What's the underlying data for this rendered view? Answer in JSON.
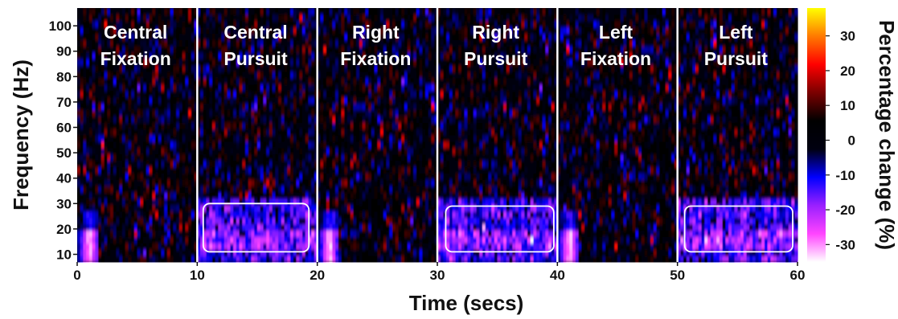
{
  "chart_data": {
    "type": "heatmap",
    "xlabel": "Time (secs)",
    "ylabel": "Frequency (Hz)",
    "xlim": [
      0,
      60
    ],
    "ylim": [
      7,
      107
    ],
    "x_ticks": [
      0,
      10,
      20,
      30,
      40,
      50,
      60
    ],
    "y_ticks": [
      10,
      20,
      30,
      40,
      50,
      60,
      70,
      80,
      90,
      100
    ],
    "colorbar": {
      "label": "Percentage change (%)",
      "range": [
        -35,
        38
      ],
      "ticks": [
        30,
        20,
        10,
        0,
        -10,
        -20,
        -30
      ],
      "colormap": [
        "#ffffff",
        "#ff44ff",
        "#9a20ff",
        "#0000ff",
        "#000010",
        "#000000",
        "#7a0000",
        "#ff0000",
        "#ff7a00",
        "#ffff00"
      ]
    },
    "segments": [
      {
        "label_line1": "Central",
        "label_line2": "Fixation",
        "x_start": 0,
        "x_end": 10,
        "condition": "fixation"
      },
      {
        "label_line1": "Central",
        "label_line2": "Pursuit",
        "x_start": 10,
        "x_end": 20,
        "condition": "pursuit"
      },
      {
        "label_line1": "Right",
        "label_line2": "Fixation",
        "x_start": 20,
        "x_end": 30,
        "condition": "fixation"
      },
      {
        "label_line1": "Right",
        "label_line2": "Pursuit",
        "x_start": 30,
        "x_end": 40,
        "condition": "pursuit"
      },
      {
        "label_line1": "Left",
        "label_line2": "Fixation",
        "x_start": 40,
        "x_end": 50,
        "condition": "fixation"
      },
      {
        "label_line1": "Left",
        "label_line2": "Pursuit",
        "x_start": 50,
        "x_end": 60,
        "condition": "pursuit"
      }
    ],
    "highlight_boxes": [
      {
        "x_start": 10.5,
        "x_end": 19.3,
        "y_low": 11,
        "y_high": 30
      },
      {
        "x_start": 30.7,
        "x_end": 39.7,
        "y_low": 11,
        "y_high": 29
      },
      {
        "x_start": 50.6,
        "x_end": 59.6,
        "y_low": 11,
        "y_high": 29
      }
    ],
    "segment_dividers": [
      10,
      20,
      30,
      40,
      50
    ],
    "notes_visible": {
      "fixation_onset_burst": {
        "x_offset": 1,
        "y": 14,
        "value": -35
      },
      "pursuit_beta_band": {
        "y_range": [
          11,
          30
        ],
        "value": -20
      }
    }
  }
}
